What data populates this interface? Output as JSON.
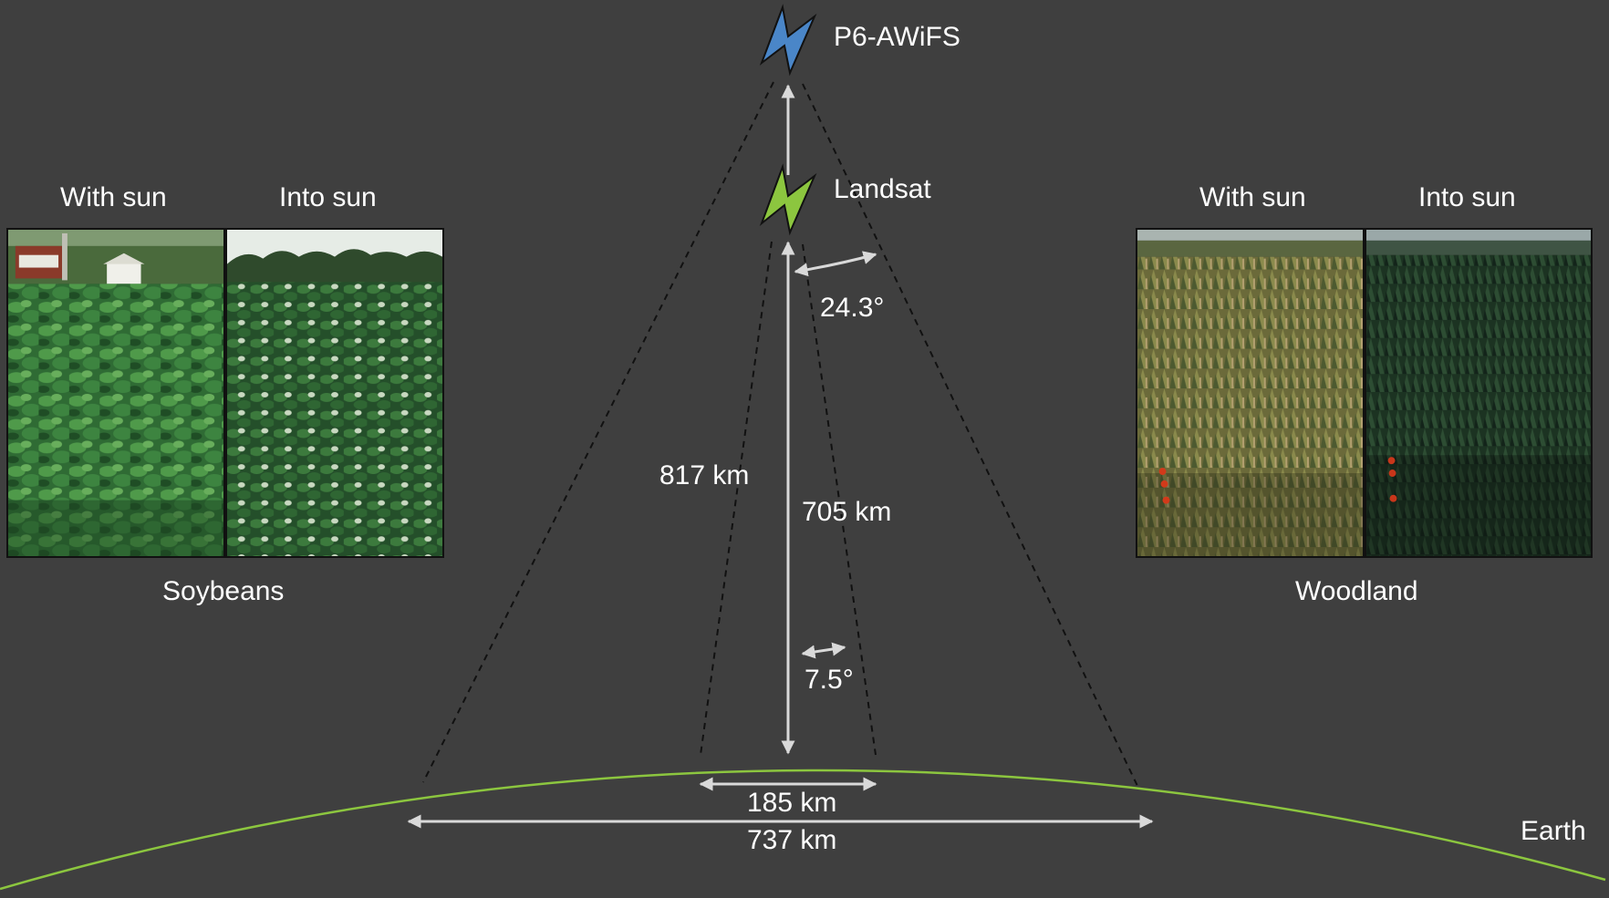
{
  "satellites": {
    "awifs": {
      "name": "P6-AWiFS",
      "color": "#4a86c8"
    },
    "landsat": {
      "name": "Landsat",
      "color": "#8cc63f"
    }
  },
  "measurements": {
    "awifs_altitude": "817 km",
    "landsat_altitude": "705 km",
    "awifs_angle": "24.3°",
    "landsat_angle": "7.5°",
    "landsat_swath": "185 km",
    "awifs_swath": "737 km"
  },
  "earth": {
    "label": "Earth",
    "color": "#8cc63f"
  },
  "panels": {
    "soybeans": {
      "caption": "Soybeans",
      "left_label": "With sun",
      "right_label": "Into sun"
    },
    "woodland": {
      "caption": "Woodland",
      "left_label": "With sun",
      "right_label": "Into sun"
    }
  },
  "colors": {
    "background": "#3f3f3f",
    "arrow": "#d9d9d9",
    "dashed": "#111111"
  }
}
